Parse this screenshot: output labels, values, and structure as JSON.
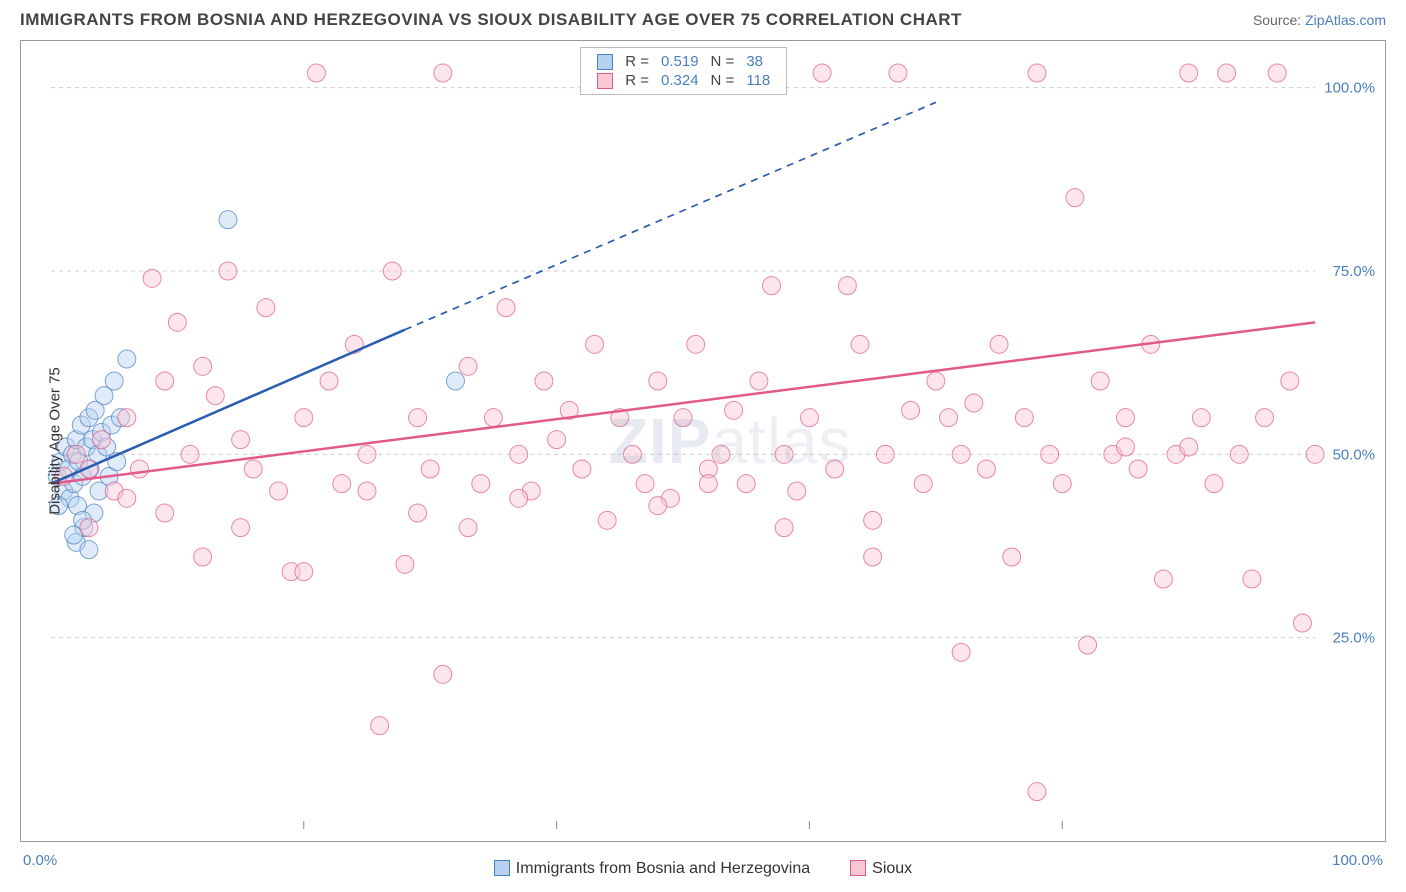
{
  "header": {
    "title": "IMMIGRANTS FROM BOSNIA AND HERZEGOVINA VS SIOUX DISABILITY AGE OVER 75 CORRELATION CHART",
    "source_prefix": "Source: ",
    "source_link": "ZipAtlas.com"
  },
  "chart": {
    "type": "scatter",
    "ylabel": "Disability Age Over 75",
    "watermark": "ZIPatlas",
    "xlim": [
      0,
      100
    ],
    "ylim": [
      0,
      105
    ],
    "xtick_step": 20,
    "yticks": [
      25,
      50,
      75,
      100
    ],
    "ytick_labels": [
      "25.0%",
      "50.0%",
      "75.0%",
      "100.0%"
    ],
    "xaxis_min_label": "0.0%",
    "xaxis_max_label": "100.0%",
    "background_color": "#ffffff",
    "grid_color": "#cccccc",
    "axis_label_color": "#4a7fbf",
    "marker_radius": 9,
    "marker_opacity": 0.45,
    "stats_box": {
      "rows": [
        {
          "swatch_fill": "#b7d2f0",
          "swatch_stroke": "#4a7fbf",
          "r": "0.519",
          "n": "38"
        },
        {
          "swatch_fill": "#f8c8d4",
          "swatch_stroke": "#e05a8a",
          "r": "0.324",
          "n": "118"
        }
      ],
      "r_label": "R  =",
      "n_label": "N  ="
    },
    "bottom_legend": [
      {
        "label": "Immigrants from Bosnia and Herzegovina",
        "fill": "#b7d2f0",
        "stroke": "#4a7fbf"
      },
      {
        "label": "Sioux",
        "fill": "#f8c8d4",
        "stroke": "#e05a8a"
      }
    ],
    "series": [
      {
        "name": "Bosnia",
        "color_fill": "#b7d2f0",
        "color_stroke": "#4a7fbf",
        "trend": {
          "x1": 0,
          "y1": 46,
          "x2": 28,
          "y2": 67,
          "dash_to_x": 70,
          "dash_to_y": 98,
          "stroke": "#2a5db0",
          "width": 2.5
        },
        "points": [
          [
            0.5,
            47
          ],
          [
            0.8,
            49
          ],
          [
            1.0,
            45
          ],
          [
            1.2,
            51
          ],
          [
            1.4,
            48
          ],
          [
            1.5,
            44
          ],
          [
            1.7,
            50
          ],
          [
            1.8,
            46
          ],
          [
            2.0,
            52
          ],
          [
            2.1,
            43
          ],
          [
            2.2,
            49
          ],
          [
            2.4,
            54
          ],
          [
            2.5,
            47
          ],
          [
            2.6,
            40
          ],
          [
            2.8,
            51
          ],
          [
            3.0,
            55
          ],
          [
            3.1,
            48
          ],
          [
            3.3,
            52
          ],
          [
            3.4,
            42
          ],
          [
            3.5,
            56
          ],
          [
            3.7,
            50
          ],
          [
            3.8,
            45
          ],
          [
            4.0,
            53
          ],
          [
            4.2,
            58
          ],
          [
            4.4,
            51
          ],
          [
            4.6,
            47
          ],
          [
            4.8,
            54
          ],
          [
            5.0,
            60
          ],
          [
            5.2,
            49
          ],
          [
            5.5,
            55
          ],
          [
            6.0,
            63
          ],
          [
            2.0,
            38
          ],
          [
            2.5,
            41
          ],
          [
            1.8,
            39
          ],
          [
            3.0,
            37
          ],
          [
            14,
            82
          ],
          [
            32,
            60
          ],
          [
            0.6,
            43
          ]
        ]
      },
      {
        "name": "Sioux",
        "color_fill": "#f8c8d4",
        "color_stroke": "#e05a8a",
        "trend": {
          "x1": 0,
          "y1": 46,
          "x2": 100,
          "y2": 68,
          "stroke": "#e05a8a",
          "width": 2.5
        },
        "points": [
          [
            1,
            47
          ],
          [
            2,
            50
          ],
          [
            3,
            48
          ],
          [
            4,
            52
          ],
          [
            5,
            45
          ],
          [
            6,
            55
          ],
          [
            7,
            48
          ],
          [
            8,
            74
          ],
          [
            9,
            60
          ],
          [
            10,
            68
          ],
          [
            11,
            50
          ],
          [
            12,
            62
          ],
          [
            13,
            58
          ],
          [
            14,
            75
          ],
          [
            15,
            52
          ],
          [
            16,
            48
          ],
          [
            17,
            70
          ],
          [
            18,
            45
          ],
          [
            19,
            34
          ],
          [
            20,
            55
          ],
          [
            21,
            102
          ],
          [
            22,
            60
          ],
          [
            23,
            46
          ],
          [
            24,
            65
          ],
          [
            25,
            50
          ],
          [
            26,
            13
          ],
          [
            27,
            75
          ],
          [
            28,
            35
          ],
          [
            29,
            55
          ],
          [
            30,
            48
          ],
          [
            31,
            20
          ],
          [
            31,
            102
          ],
          [
            33,
            62
          ],
          [
            34,
            46
          ],
          [
            35,
            55
          ],
          [
            36,
            70
          ],
          [
            37,
            50
          ],
          [
            38,
            45
          ],
          [
            39,
            60
          ],
          [
            40,
            52
          ],
          [
            41,
            56
          ],
          [
            42,
            48
          ],
          [
            43,
            65
          ],
          [
            44,
            41
          ],
          [
            45,
            55
          ],
          [
            46,
            50
          ],
          [
            47,
            46
          ],
          [
            48,
            60
          ],
          [
            49,
            44
          ],
          [
            50,
            55
          ],
          [
            51,
            65
          ],
          [
            52,
            48
          ],
          [
            53,
            50
          ],
          [
            54,
            56
          ],
          [
            55,
            46
          ],
          [
            56,
            60
          ],
          [
            57,
            73
          ],
          [
            58,
            50
          ],
          [
            59,
            45
          ],
          [
            60,
            55
          ],
          [
            61,
            102
          ],
          [
            62,
            48
          ],
          [
            63,
            73
          ],
          [
            64,
            65
          ],
          [
            65,
            41
          ],
          [
            66,
            50
          ],
          [
            67,
            102
          ],
          [
            68,
            56
          ],
          [
            69,
            46
          ],
          [
            70,
            60
          ],
          [
            71,
            55
          ],
          [
            72,
            50
          ],
          [
            73,
            57
          ],
          [
            74,
            48
          ],
          [
            75,
            65
          ],
          [
            76,
            36
          ],
          [
            77,
            55
          ],
          [
            78,
            102
          ],
          [
            79,
            50
          ],
          [
            80,
            46
          ],
          [
            81,
            85
          ],
          [
            82,
            24
          ],
          [
            83,
            60
          ],
          [
            84,
            50
          ],
          [
            85,
            55
          ],
          [
            86,
            48
          ],
          [
            87,
            65
          ],
          [
            88,
            33
          ],
          [
            89,
            50
          ],
          [
            90,
            102
          ],
          [
            91,
            55
          ],
          [
            92,
            46
          ],
          [
            93,
            102
          ],
          [
            94,
            50
          ],
          [
            95,
            33
          ],
          [
            96,
            55
          ],
          [
            97,
            102
          ],
          [
            98,
            60
          ],
          [
            99,
            27
          ],
          [
            100,
            50
          ],
          [
            72,
            23
          ],
          [
            78,
            4
          ],
          [
            65,
            36
          ],
          [
            58,
            40
          ],
          [
            48,
            43
          ],
          [
            52,
            46
          ],
          [
            37,
            44
          ],
          [
            33,
            40
          ],
          [
            29,
            42
          ],
          [
            25,
            45
          ],
          [
            20,
            34
          ],
          [
            15,
            40
          ],
          [
            12,
            36
          ],
          [
            9,
            42
          ],
          [
            6,
            44
          ],
          [
            3,
            40
          ],
          [
            85,
            51
          ],
          [
            90,
            51
          ]
        ]
      }
    ]
  }
}
